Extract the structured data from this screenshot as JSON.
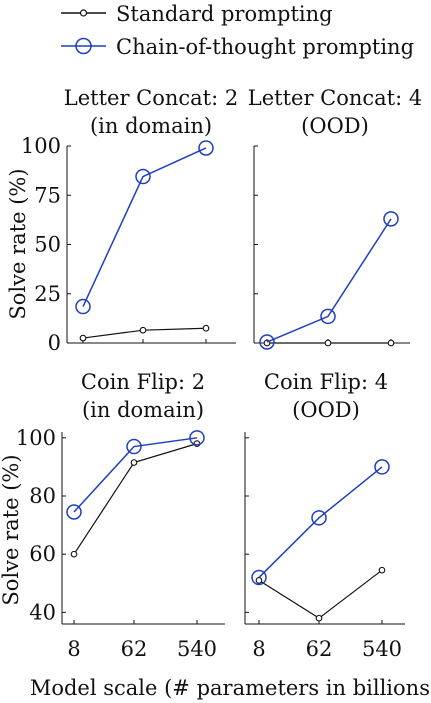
{
  "legend": [
    {
      "label": "Standard prompting",
      "color": "#111111",
      "marker": "small-circle"
    },
    {
      "label": "Chain-of-thought prompting",
      "color": "#1f3fbf",
      "marker": "large-circle"
    }
  ],
  "xlabel": "Model scale (# parameters in billions)",
  "ylabel": "Solve rate (%)",
  "chart_data": [
    {
      "type": "line",
      "title": [
        "Letter Concat: 2",
        "(in domain)"
      ],
      "x": [
        "8",
        "62",
        "540"
      ],
      "ylim": [
        0,
        100
      ],
      "yticks": [
        0,
        25,
        50,
        75,
        100
      ],
      "series": [
        {
          "name": "Standard prompting",
          "values": [
            2.5,
            6.5,
            7.5
          ]
        },
        {
          "name": "Chain-of-thought prompting",
          "values": [
            18.5,
            84.5,
            99.0
          ]
        }
      ]
    },
    {
      "type": "line",
      "title": [
        "Letter Concat: 4",
        "(OOD)"
      ],
      "x": [
        "8",
        "62",
        "540"
      ],
      "ylim": [
        0,
        100
      ],
      "yticks": [
        0,
        25,
        50,
        75,
        100
      ],
      "series": [
        {
          "name": "Standard prompting",
          "values": [
            0,
            0,
            0
          ]
        },
        {
          "name": "Chain-of-thought prompting",
          "values": [
            0.5,
            13.5,
            63.0
          ]
        }
      ]
    },
    {
      "type": "line",
      "title": [
        "Coin Flip: 2",
        "(in domain)"
      ],
      "x": [
        "8",
        "62",
        "540"
      ],
      "ylim": [
        36,
        102
      ],
      "yticks": [
        40,
        60,
        80,
        100
      ],
      "series": [
        {
          "name": "Standard prompting",
          "values": [
            60.0,
            91.5,
            98.0
          ]
        },
        {
          "name": "Chain-of-thought prompting",
          "values": [
            74.5,
            97.0,
            100.0
          ]
        }
      ]
    },
    {
      "type": "line",
      "title": [
        "Coin Flip: 4",
        "(OOD)"
      ],
      "x": [
        "8",
        "62",
        "540"
      ],
      "ylim": [
        36,
        102
      ],
      "yticks": [
        40,
        60,
        80,
        100
      ],
      "series": [
        {
          "name": "Standard prompting",
          "values": [
            51.0,
            38.0,
            54.5
          ]
        },
        {
          "name": "Chain-of-thought prompting",
          "values": [
            52.0,
            72.5,
            90.0
          ]
        }
      ]
    }
  ]
}
